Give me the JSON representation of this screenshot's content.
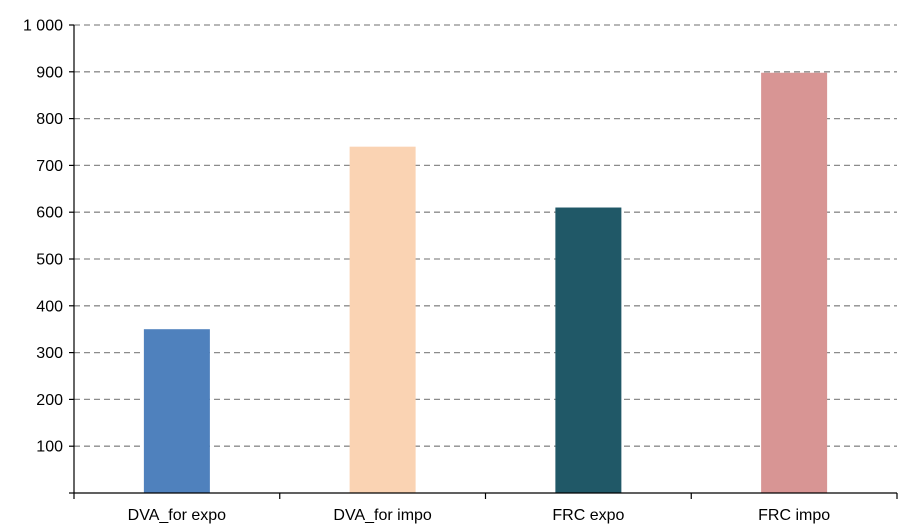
{
  "chart_data": {
    "type": "bar",
    "title": "",
    "xlabel": "",
    "ylabel": "",
    "categories": [
      "DVA_for expo",
      "DVA_for impo",
      "FRC expo",
      "FRC impo"
    ],
    "values": [
      350,
      740,
      610,
      898
    ],
    "colors": [
      "#4f81bd",
      "#fad3b3",
      "#205867",
      "#d89594"
    ],
    "ylim": [
      0,
      1000
    ],
    "yticks": [
      100,
      200,
      300,
      400,
      500,
      600,
      700,
      800,
      900,
      1000
    ],
    "ytick_labels": [
      "100",
      "200",
      "300",
      "400",
      "500",
      "600",
      "700",
      "800",
      "900",
      "1 000"
    ],
    "grid": true,
    "legend": "none"
  }
}
